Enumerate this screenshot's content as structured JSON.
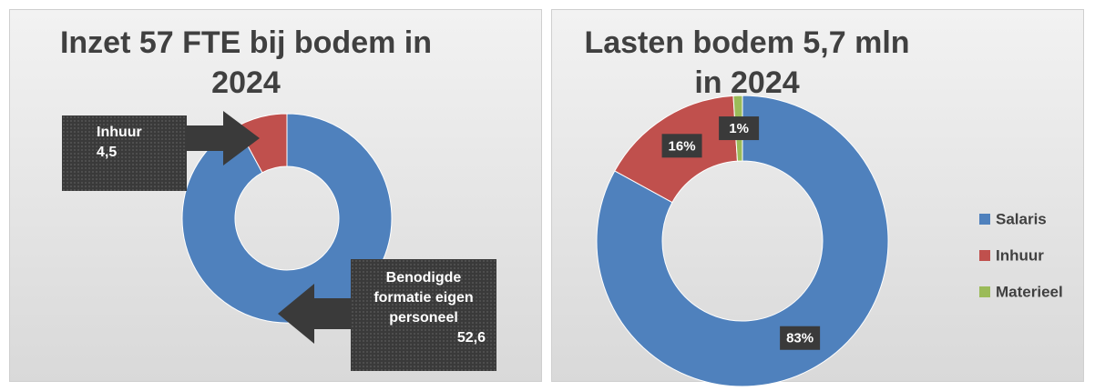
{
  "chart_data": [
    {
      "type": "donut",
      "title": "Inzet 57 FTE bij bodem in 2024",
      "categories": [
        "Benodigde formatie eigen personeel",
        "Inhuur"
      ],
      "values": [
        52.6,
        4.5
      ],
      "value_labels": [
        "52,6",
        "4,5"
      ],
      "colors": [
        "#4f81bd",
        "#c0504d"
      ]
    },
    {
      "type": "donut",
      "title": "Lasten bodem 5,7 mln in 2024",
      "categories": [
        "Salaris",
        "Inhuur",
        "Materieel"
      ],
      "values": [
        83,
        16,
        1
      ],
      "value_labels": [
        "83%",
        "16%",
        "1%"
      ],
      "colors": [
        "#4f81bd",
        "#c0504d",
        "#9bbb59"
      ],
      "legend": "right"
    }
  ]
}
